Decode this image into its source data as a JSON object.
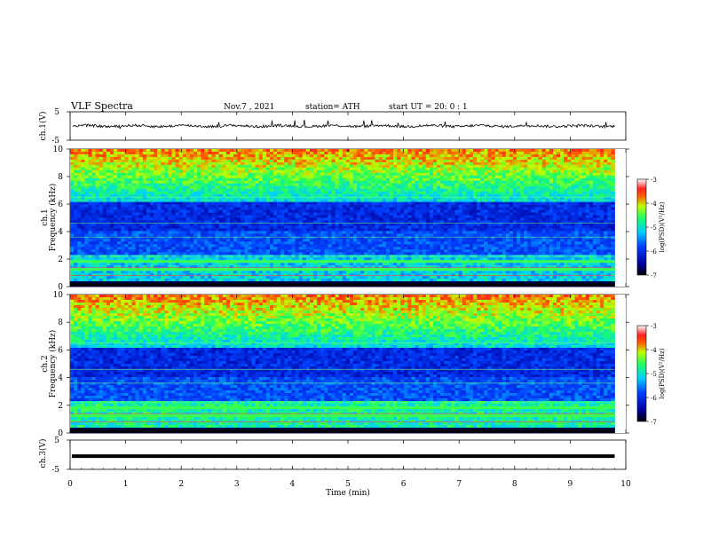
{
  "header": {
    "title": "VLF  Spectra",
    "date": "Nov.7  , 2021",
    "station": "station= ATH",
    "start": "start  UT  =    20: 0   : 1"
  },
  "colors": {
    "spectrogram_low": "#00005a",
    "spectrogram_mid": "#2040ff",
    "spectrogram_high": "#80ff40",
    "waveform": "#000000"
  },
  "chart_data": [
    {
      "type": "line",
      "panel": "ch1-waveform",
      "ylabel": "ch.1(V)",
      "ylim": [
        -5,
        5
      ],
      "yticks": [
        "5",
        "-5"
      ],
      "x_range_min": [
        0,
        9.8
      ],
      "description_values": "waveform fluctuating around 0 V with spikes up to about +1 V"
    },
    {
      "type": "heatmap",
      "panel": "ch1-spectrogram",
      "ylabel": "ch.1\nFrequency  (kHz)",
      "ylim": [
        0,
        10
      ],
      "yticks": [
        "0",
        "2",
        "4",
        "6",
        "8",
        "10"
      ],
      "colorbar": {
        "label": "log(PSD)(V²/Hz)",
        "ticks": [
          "-3",
          "-4",
          "-5",
          "-6",
          "-7"
        ],
        "range": [
          -7,
          -3
        ]
      }
    },
    {
      "type": "heatmap",
      "panel": "ch2-spectrogram",
      "ylabel": "ch.2\nFrequency  (kHz)",
      "ylim": [
        0,
        10
      ],
      "yticks": [
        "0",
        "2",
        "4",
        "6",
        "8",
        "10"
      ],
      "colorbar": {
        "label": "log(PSD)(V²/Hz)",
        "ticks": [
          "-3",
          "-4",
          "-5",
          "-6",
          "-7"
        ],
        "range": [
          -7,
          -3
        ]
      }
    },
    {
      "type": "line",
      "panel": "ch3-waveform",
      "ylabel": "ch.3(V)",
      "ylim": [
        -5,
        5
      ],
      "yticks": [
        "5",
        "-5"
      ],
      "flat_value": -0.5
    }
  ],
  "xaxis": {
    "label": "Time  (min)",
    "ticks": [
      "0",
      "1",
      "2",
      "3",
      "4",
      "5",
      "6",
      "7",
      "8",
      "9",
      "10"
    ],
    "range": [
      0,
      10
    ]
  }
}
